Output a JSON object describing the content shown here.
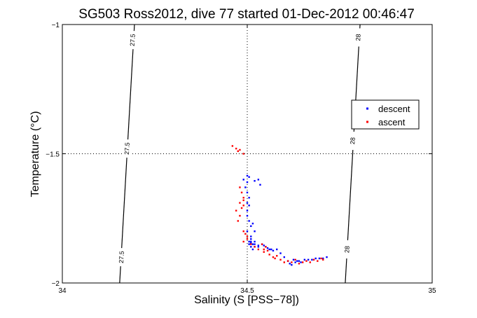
{
  "chart_data": {
    "type": "scatter",
    "title": "SG503 Ross2012, dive 77 started 01-Dec-2012 00:46:47",
    "xlabel": "Salinity (S [PSS−78])",
    "ylabel": "Temperature (°C)",
    "xlim": [
      34,
      35
    ],
    "ylim": [
      -2,
      -1
    ],
    "x_ticks": [
      34,
      34.5,
      35
    ],
    "x_tick_labels": [
      "34",
      "34.5",
      "35"
    ],
    "y_ticks": [
      -2,
      -1.5,
      -1
    ],
    "y_tick_labels": [
      "−2",
      "−1.5",
      "−1"
    ],
    "grid": "dotted",
    "legend_position": "right",
    "contours": [
      {
        "label": "27.5",
        "points": [
          [
            34.155,
            -2
          ],
          [
            34.195,
            -1
          ]
        ],
        "label_positions": [
          [
            34.19,
            -1.06
          ],
          [
            34.175,
            -1.48
          ],
          [
            34.16,
            -1.9
          ]
        ]
      },
      {
        "label": "28",
        "points": [
          [
            34.765,
            -2
          ],
          [
            34.805,
            -1
          ]
        ],
        "label_positions": [
          [
            34.8,
            -1.05
          ],
          [
            34.785,
            -1.45
          ],
          [
            34.77,
            -1.87
          ]
        ]
      }
    ],
    "series": [
      {
        "name": "descent",
        "color": "#0000ff",
        "x": [
          34.49,
          34.5,
          34.505,
          34.5,
          34.495,
          34.5,
          34.505,
          34.5,
          34.52,
          34.535,
          34.53,
          34.5,
          34.505,
          34.5,
          34.505,
          34.51,
          34.5,
          34.515,
          34.51,
          34.51,
          34.52,
          34.51,
          34.52,
          34.515,
          34.505,
          34.515,
          34.52,
          34.51,
          34.53,
          34.54,
          34.55,
          34.56,
          34.57,
          34.58,
          34.59,
          34.6,
          34.61,
          34.615,
          34.62,
          34.625,
          34.63,
          34.635,
          34.64,
          34.645,
          34.655,
          34.665,
          34.675,
          34.685,
          34.695,
          34.705,
          34.715,
          34.505,
          34.51,
          34.52,
          34.53,
          34.545,
          34.555,
          34.565
        ],
        "y": [
          -1.6,
          -1.585,
          -1.59,
          -1.61,
          -1.63,
          -1.65,
          -1.67,
          -1.69,
          -1.605,
          -1.62,
          -1.6,
          -1.72,
          -1.7,
          -1.74,
          -1.76,
          -1.78,
          -1.8,
          -1.77,
          -1.82,
          -1.84,
          -1.8,
          -1.86,
          -1.85,
          -1.87,
          -1.84,
          -1.85,
          -1.86,
          -1.845,
          -1.855,
          -1.85,
          -1.86,
          -1.87,
          -1.875,
          -1.87,
          -1.885,
          -1.9,
          -1.915,
          -1.925,
          -1.93,
          -1.91,
          -1.92,
          -1.915,
          -1.915,
          -1.92,
          -1.91,
          -1.91,
          -1.91,
          -1.905,
          -1.905,
          -1.905,
          -1.9,
          -1.85,
          -1.83,
          -1.84,
          -1.86,
          -1.855,
          -1.865,
          -1.87
        ]
      },
      {
        "name": "ascent",
        "color": "#ff0000",
        "x": [
          34.46,
          34.47,
          34.475,
          34.48,
          34.49,
          34.48,
          34.485,
          34.49,
          34.48,
          34.485,
          34.49,
          34.47,
          34.48,
          34.49,
          34.475,
          34.49,
          34.495,
          34.5,
          34.49,
          34.5,
          34.51,
          34.52,
          34.53,
          34.545,
          34.555,
          34.56,
          34.57,
          34.575,
          34.58,
          34.59,
          34.6,
          34.61,
          34.62,
          34.63,
          34.64,
          34.65,
          34.66,
          34.67,
          34.68,
          34.69,
          34.7,
          34.705,
          34.54,
          34.55,
          34.545
        ],
        "y": [
          -1.47,
          -1.48,
          -1.49,
          -1.485,
          -1.5,
          -1.63,
          -1.65,
          -1.67,
          -1.69,
          -1.71,
          -1.68,
          -1.72,
          -1.74,
          -1.7,
          -1.76,
          -1.8,
          -1.81,
          -1.82,
          -1.84,
          -1.83,
          -1.85,
          -1.86,
          -1.87,
          -1.88,
          -1.875,
          -1.89,
          -1.9,
          -1.905,
          -1.895,
          -1.91,
          -1.92,
          -1.915,
          -1.92,
          -1.91,
          -1.925,
          -1.92,
          -1.915,
          -1.92,
          -1.91,
          -1.915,
          -1.905,
          -1.91,
          -1.85,
          -1.86,
          -1.87
        ]
      }
    ]
  }
}
